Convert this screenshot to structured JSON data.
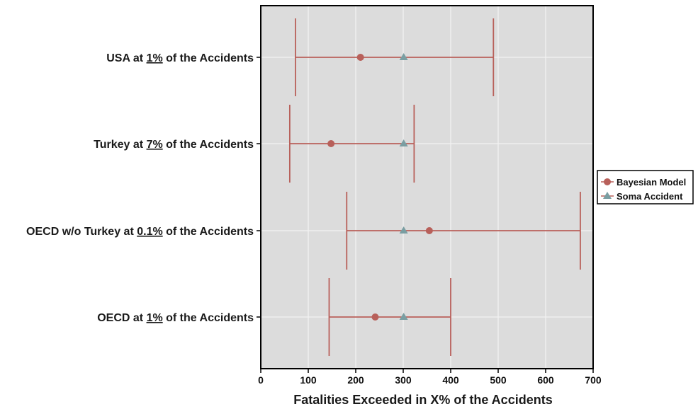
{
  "chart_data": {
    "type": "scatter",
    "subtype": "interval-plot",
    "xlabel": "Fatalities Exceeded in X% of the Accidents",
    "ylabel": "",
    "xlim": [
      0,
      700
    ],
    "xticks": [
      0,
      100,
      200,
      300,
      400,
      500,
      600,
      700
    ],
    "grid": true,
    "legend_position": "right",
    "colors": {
      "panel_bg": "#dcdcdc",
      "grid": "#f2f2f2",
      "bayesian": "#b8605a",
      "soma": "#7a9ea2",
      "frame": "#000000"
    },
    "categories": [
      {
        "pre": "USA at ",
        "pct": "1%",
        "post": " of the Accidents"
      },
      {
        "pre": "Turkey at ",
        "pct": "7%",
        "post": " of the Accidents"
      },
      {
        "pre": "OECD w/o Turkey at ",
        "pct": "0.1%",
        "post": " of the Accidents"
      },
      {
        "pre": "OECD at ",
        "pct": "1%",
        "post": " of the Accidents"
      }
    ],
    "series": [
      {
        "name": "Bayesian Model",
        "marker": "circle",
        "values": [
          210,
          148,
          355,
          241
        ],
        "lower": [
          73,
          61,
          181,
          144
        ],
        "upper": [
          490,
          323,
          673,
          400
        ]
      },
      {
        "name": "Soma Accident",
        "marker": "triangle",
        "values": [
          301,
          301,
          301,
          301
        ]
      }
    ]
  }
}
